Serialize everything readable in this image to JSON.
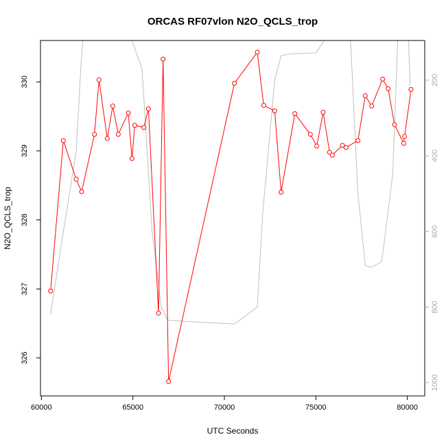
{
  "chart_data": {
    "type": "line",
    "title": "ORCAS RF07vlon N2O_QCLS_trop",
    "xlabel": "UTC Seconds",
    "ylabel": "N2O_QCLS_trop",
    "xlim": [
      59950,
      80950
    ],
    "ylim": [
      325.45,
      330.6
    ],
    "x_ticks": [
      60000,
      65000,
      70000,
      75000,
      80000
    ],
    "y_ticks": [
      326,
      327,
      328,
      329,
      330
    ],
    "y2_ticks": [
      200,
      400,
      600,
      800,
      1000
    ],
    "y2lim": [
      1035,
      95
    ],
    "grid": false,
    "colors": {
      "series": "#ff0000",
      "secondary": "#bebebe"
    },
    "series": [
      {
        "x": [
          60500,
          61200,
          61900,
          62200,
          62900,
          63150,
          63600,
          63900,
          64200,
          64750,
          64950,
          65100,
          65600,
          65850,
          66400,
          66650,
          66950,
          70550,
          71800,
          72150,
          72750,
          73100,
          73850,
          74700,
          75050,
          75400,
          75750,
          75900,
          76450,
          76650,
          77300,
          77700,
          78050,
          78650,
          78950,
          79300,
          79800,
          79850,
          80200
        ],
        "values": [
          326.97,
          329.15,
          328.59,
          328.41,
          329.24,
          330.03,
          329.18,
          329.65,
          329.24,
          329.55,
          328.89,
          329.37,
          329.34,
          329.61,
          326.65,
          330.33,
          325.66,
          329.98,
          330.43,
          329.66,
          329.58,
          328.4,
          329.54,
          329.24,
          329.07,
          329.56,
          328.98,
          328.94,
          329.08,
          329.05,
          329.15,
          329.8,
          329.65,
          330.04,
          329.9,
          329.38,
          329.11,
          329.21,
          329.89
        ]
      },
      {
        "x": [
          60500,
          61200,
          61900,
          62150,
          62400,
          64250,
          65500,
          66050,
          66550,
          66900,
          70550,
          71800,
          72100,
          72750,
          73100,
          73700,
          75000,
          76800,
          77300,
          77700,
          78050,
          78600,
          79200,
          79550,
          80000,
          80150
        ],
        "values": [
          820,
          600,
          390,
          170,
          0,
          0,
          170,
          600,
          800,
          835,
          845,
          800,
          550,
          200,
          135,
          130,
          128,
          0,
          500,
          690,
          695,
          680,
          450,
          0,
          0,
          215
        ]
      }
    ]
  }
}
